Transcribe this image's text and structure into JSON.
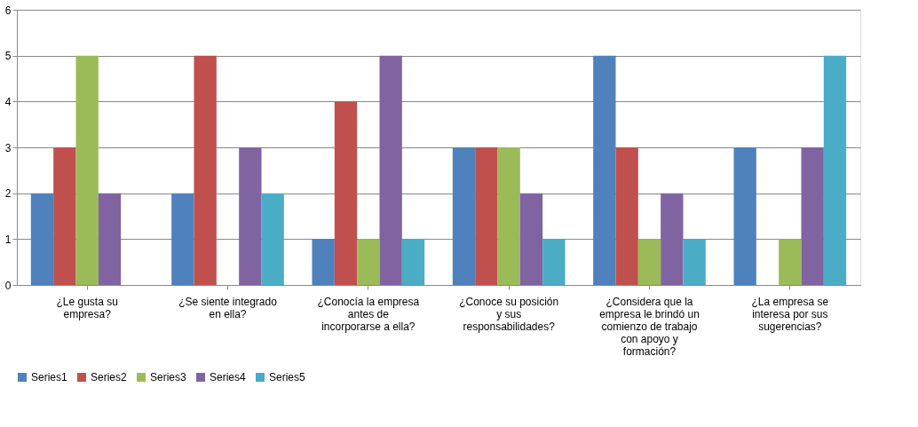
{
  "chart_data": {
    "type": "bar",
    "categories": [
      "¿Le gusta su empresa?",
      "¿Se siente integrado en ella?",
      "¿Conocía la empresa antes de incorporarse a ella?",
      "¿Conoce su posición y sus responsabilidades?",
      "¿Considera que la empresa le brindó un comienzo de trabajo con apoyo y formación?",
      "¿La empresa se interesa por sus sugerencias?"
    ],
    "series": [
      {
        "name": "Series1",
        "color": "#4f81bd",
        "values": [
          2,
          2,
          1,
          3,
          5,
          3
        ]
      },
      {
        "name": "Series2",
        "color": "#c0504d",
        "values": [
          3,
          5,
          4,
          3,
          3,
          0
        ]
      },
      {
        "name": "Series3",
        "color": "#9bbb59",
        "values": [
          5,
          0,
          1,
          3,
          1,
          1
        ]
      },
      {
        "name": "Series4",
        "color": "#8064a2",
        "values": [
          2,
          3,
          5,
          2,
          2,
          3
        ]
      },
      {
        "name": "Series5",
        "color": "#4bacc6",
        "values": [
          0,
          2,
          1,
          1,
          1,
          5
        ]
      }
    ],
    "ylim": [
      0,
      6
    ],
    "yticks": [
      0,
      1,
      2,
      3,
      4,
      5,
      6
    ],
    "grid": "y",
    "legend": "bottom"
  }
}
